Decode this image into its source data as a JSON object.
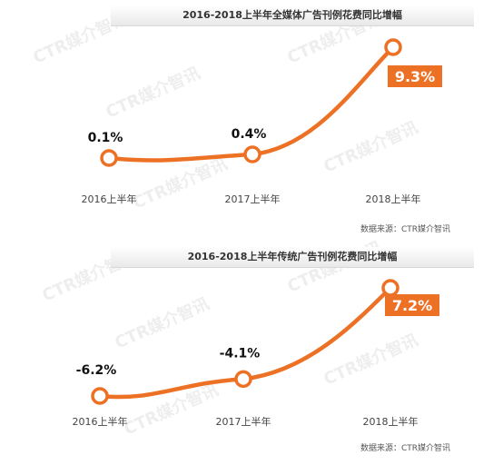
{
  "watermark_text": "CTR媒介智讯",
  "colors": {
    "line": "#ED7125",
    "marker_fill": "#ffffff",
    "label_box": "#ED7125"
  },
  "chart_data": [
    {
      "type": "line",
      "title": "2016-2018上半年全媒体广告刊例花费同比增幅",
      "categories": [
        "2016上半年",
        "2017上半年",
        "2018上半年"
      ],
      "values": [
        0.1,
        0.4,
        9.3
      ],
      "data_labels": [
        "0.1%",
        "0.4%",
        "9.3%"
      ],
      "highlight_last": true,
      "source": "数据来源：CTR媒介智讯",
      "xlabel": "",
      "ylabel": ""
    },
    {
      "type": "line",
      "title": "2016-2018上半年传统广告刊例花费同比增幅",
      "categories": [
        "2016上半年",
        "2017上半年",
        "2018上半年"
      ],
      "values": [
        -6.2,
        -4.1,
        7.2
      ],
      "data_labels": [
        "-6.2%",
        "-4.1%",
        "7.2%"
      ],
      "highlight_last": true,
      "source": "数据来源：CTR媒介智讯",
      "xlabel": "",
      "ylabel": ""
    }
  ]
}
